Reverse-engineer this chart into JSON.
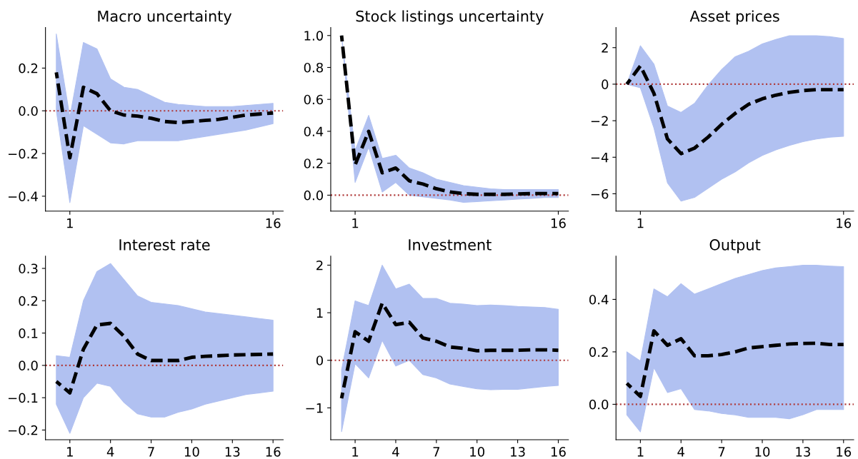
{
  "chart_data": [
    {
      "type": "line",
      "title": "Macro uncertainty",
      "x": [
        0,
        1,
        2,
        3,
        4,
        5,
        6,
        7,
        8,
        9,
        10,
        11,
        12,
        13,
        14,
        15,
        16
      ],
      "xlim": [
        -0.8,
        16.75
      ],
      "xticks": [
        1,
        16
      ],
      "ylim": [
        -0.47,
        0.39
      ],
      "yticks": [
        {
          "value": -0.4,
          "label": "−0.4"
        },
        {
          "value": -0.2,
          "label": "−0.2"
        },
        {
          "value": 0,
          "label": "0.0"
        },
        {
          "value": 0.2,
          "label": "0.2"
        }
      ],
      "line_style": "dashed",
      "marker": "none",
      "grid": false,
      "legend": false,
      "ref_lines": [
        {
          "axis": "y",
          "value": 0,
          "color": "#b03a3a",
          "line_style": "dotted"
        }
      ],
      "series": [
        {
          "color": "#000000",
          "values": [
            0.18,
            -0.22,
            0.11,
            0.08,
            0.0,
            -0.02,
            -0.025,
            -0.035,
            -0.05,
            -0.055,
            -0.05,
            -0.045,
            -0.04,
            -0.03,
            -0.02,
            -0.015,
            -0.01
          ],
          "upper": [
            0.36,
            -0.03,
            0.32,
            0.29,
            0.15,
            0.11,
            0.1,
            0.07,
            0.04,
            0.03,
            0.025,
            0.02,
            0.02,
            0.02,
            0.025,
            0.03,
            0.035
          ],
          "lower": [
            0.0,
            -0.43,
            -0.07,
            -0.11,
            -0.15,
            -0.155,
            -0.14,
            -0.14,
            -0.14,
            -0.14,
            -0.13,
            -0.12,
            -0.11,
            -0.1,
            -0.09,
            -0.075,
            -0.06
          ]
        }
      ]
    },
    {
      "type": "line",
      "title": "Stock listings uncertainty",
      "x": [
        0,
        1,
        2,
        3,
        4,
        5,
        6,
        7,
        8,
        9,
        10,
        11,
        12,
        13,
        14,
        15,
        16
      ],
      "xlim": [
        -0.8,
        16.75
      ],
      "xticks": [
        1,
        16
      ],
      "ylim": [
        -0.1,
        1.05
      ],
      "yticks": [
        {
          "value": 0,
          "label": "0.0"
        },
        {
          "value": 0.2,
          "label": "0.2"
        },
        {
          "value": 0.4,
          "label": "0.4"
        },
        {
          "value": 0.6,
          "label": "0.6"
        },
        {
          "value": 0.8,
          "label": "0.8"
        },
        {
          "value": 1.0,
          "label": "1.0"
        }
      ],
      "line_style": "dashed",
      "marker": "none",
      "grid": false,
      "legend": false,
      "ref_lines": [
        {
          "axis": "y",
          "value": 0,
          "color": "#b03a3a",
          "line_style": "dotted"
        }
      ],
      "series": [
        {
          "color": "#000000",
          "values": [
            1.0,
            0.19,
            0.4,
            0.14,
            0.17,
            0.09,
            0.07,
            0.04,
            0.02,
            0.01,
            0.005,
            0.005,
            0.005,
            0.008,
            0.01,
            0.01,
            0.01
          ],
          "upper": [
            1.0,
            0.28,
            0.5,
            0.23,
            0.25,
            0.17,
            0.14,
            0.1,
            0.08,
            0.06,
            0.05,
            0.04,
            0.035,
            0.035,
            0.035,
            0.035,
            0.035
          ],
          "lower": [
            1.0,
            0.08,
            0.3,
            0.02,
            0.08,
            0.0,
            -0.01,
            -0.02,
            -0.03,
            -0.045,
            -0.04,
            -0.035,
            -0.03,
            -0.025,
            -0.02,
            -0.015,
            -0.015
          ]
        }
      ]
    },
    {
      "type": "line",
      "title": "Asset prices",
      "x": [
        0,
        1,
        2,
        3,
        4,
        5,
        6,
        7,
        8,
        9,
        10,
        11,
        12,
        13,
        14,
        15,
        16
      ],
      "xlim": [
        -0.8,
        16.75
      ],
      "xticks": [
        1,
        16
      ],
      "ylim": [
        -6.95,
        3.1
      ],
      "yticks": [
        {
          "value": -6,
          "label": "−6"
        },
        {
          "value": -4,
          "label": "−4"
        },
        {
          "value": -2,
          "label": "−2"
        },
        0,
        2
      ],
      "line_style": "dashed",
      "marker": "none",
      "grid": false,
      "legend": false,
      "ref_lines": [
        {
          "axis": "y",
          "value": 0,
          "color": "#b03a3a",
          "line_style": "dotted"
        }
      ],
      "series": [
        {
          "color": "#000000",
          "values": [
            0,
            1.0,
            -0.5,
            -3.0,
            -3.8,
            -3.5,
            -2.9,
            -2.2,
            -1.6,
            -1.1,
            -0.8,
            -0.6,
            -0.45,
            -0.35,
            -0.3,
            -0.3,
            -0.3
          ],
          "upper": [
            0,
            2.1,
            1.1,
            -1.2,
            -1.55,
            -1.05,
            -0.05,
            0.8,
            1.5,
            1.8,
            2.2,
            2.45,
            2.65,
            2.65,
            2.65,
            2.6,
            2.5
          ],
          "lower": [
            0,
            -0.2,
            -2.4,
            -5.4,
            -6.4,
            -6.2,
            -5.7,
            -5.2,
            -4.8,
            -4.3,
            -3.9,
            -3.6,
            -3.35,
            -3.15,
            -3.0,
            -2.9,
            -2.85
          ]
        }
      ]
    },
    {
      "type": "line",
      "title": "Interest rate",
      "x": [
        0,
        1,
        2,
        3,
        4,
        5,
        6,
        7,
        8,
        9,
        10,
        11,
        12,
        13,
        14,
        15,
        16
      ],
      "xlim": [
        -0.8,
        16.75
      ],
      "xticks": [
        1,
        4,
        7,
        10,
        13,
        16
      ],
      "ylim": [
        -0.23,
        0.338
      ],
      "yticks": [
        {
          "value": -0.2,
          "label": "−0.2"
        },
        {
          "value": -0.1,
          "label": "−0.1"
        },
        {
          "value": 0,
          "label": "0.0"
        },
        {
          "value": 0.1,
          "label": "0.1"
        },
        {
          "value": 0.2,
          "label": "0.2"
        },
        {
          "value": 0.3,
          "label": "0.3"
        }
      ],
      "line_style": "dashed",
      "marker": "none",
      "grid": false,
      "legend": false,
      "ref_lines": [
        {
          "axis": "y",
          "value": 0,
          "color": "#b03a3a",
          "line_style": "dotted"
        }
      ],
      "series": [
        {
          "color": "#000000",
          "values": [
            -0.05,
            -0.085,
            0.05,
            0.125,
            0.13,
            0.09,
            0.035,
            0.015,
            0.015,
            0.015,
            0.025,
            0.028,
            0.03,
            0.032,
            0.033,
            0.034,
            0.035
          ],
          "upper": [
            0.03,
            0.025,
            0.2,
            0.29,
            0.315,
            0.265,
            0.215,
            0.195,
            0.19,
            0.185,
            0.175,
            0.165,
            0.16,
            0.155,
            0.15,
            0.145,
            0.14
          ],
          "lower": [
            -0.12,
            -0.21,
            -0.1,
            -0.055,
            -0.065,
            -0.115,
            -0.15,
            -0.16,
            -0.16,
            -0.145,
            -0.135,
            -0.12,
            -0.11,
            -0.1,
            -0.09,
            -0.085,
            -0.08
          ]
        }
      ]
    },
    {
      "type": "line",
      "title": "Investment",
      "x": [
        0,
        1,
        2,
        3,
        4,
        5,
        6,
        7,
        8,
        9,
        10,
        11,
        12,
        13,
        14,
        15,
        16
      ],
      "xlim": [
        -0.8,
        16.75
      ],
      "xticks": [
        1,
        4,
        7,
        10,
        13,
        16
      ],
      "ylim": [
        -1.67,
        2.19
      ],
      "yticks": [
        {
          "value": -1,
          "label": "−1"
        },
        0,
        1,
        2
      ],
      "line_style": "dashed",
      "marker": "none",
      "grid": false,
      "legend": false,
      "ref_lines": [
        {
          "axis": "y",
          "value": 0,
          "color": "#b03a3a",
          "line_style": "dotted"
        }
      ],
      "series": [
        {
          "color": "#000000",
          "values": [
            -0.8,
            0.6,
            0.4,
            1.2,
            0.75,
            0.8,
            0.47,
            0.4,
            0.28,
            0.25,
            0.2,
            0.21,
            0.21,
            0.21,
            0.22,
            0.22,
            0.21
          ],
          "upper": [
            -0.2,
            1.25,
            1.15,
            2.0,
            1.5,
            1.6,
            1.3,
            1.3,
            1.2,
            1.18,
            1.15,
            1.16,
            1.15,
            1.13,
            1.12,
            1.11,
            1.07
          ],
          "lower": [
            -1.5,
            -0.07,
            -0.37,
            0.42,
            -0.12,
            0.0,
            -0.3,
            -0.37,
            -0.5,
            -0.55,
            -0.6,
            -0.62,
            -0.61,
            -0.61,
            -0.58,
            -0.55,
            -0.53
          ]
        }
      ]
    },
    {
      "type": "line",
      "title": "Output",
      "x": [
        0,
        1,
        2,
        3,
        4,
        5,
        6,
        7,
        8,
        9,
        10,
        11,
        12,
        13,
        14,
        15,
        16
      ],
      "xlim": [
        -0.8,
        16.75
      ],
      "xticks": [
        1,
        4,
        7,
        10,
        13,
        16
      ],
      "ylim": [
        -0.135,
        0.565
      ],
      "yticks": [
        {
          "value": 0,
          "label": "0.0"
        },
        {
          "value": 0.2,
          "label": "0.2"
        },
        {
          "value": 0.4,
          "label": "0.4"
        }
      ],
      "line_style": "dashed",
      "marker": "none",
      "grid": false,
      "legend": false,
      "ref_lines": [
        {
          "axis": "y",
          "value": 0,
          "color": "#b03a3a",
          "line_style": "dotted"
        }
      ],
      "series": [
        {
          "color": "#000000",
          "values": [
            0.08,
            0.03,
            0.28,
            0.225,
            0.25,
            0.185,
            0.185,
            0.19,
            0.2,
            0.215,
            0.22,
            0.225,
            0.23,
            0.232,
            0.233,
            0.228,
            0.228
          ],
          "upper": [
            0.2,
            0.165,
            0.44,
            0.41,
            0.46,
            0.42,
            0.44,
            0.46,
            0.48,
            0.495,
            0.51,
            0.52,
            0.525,
            0.53,
            0.53,
            0.527,
            0.525
          ],
          "lower": [
            -0.04,
            -0.105,
            0.14,
            0.045,
            0.06,
            -0.02,
            -0.025,
            -0.035,
            -0.04,
            -0.05,
            -0.05,
            -0.05,
            -0.055,
            -0.04,
            -0.02,
            -0.02,
            -0.02
          ]
        }
      ]
    }
  ]
}
